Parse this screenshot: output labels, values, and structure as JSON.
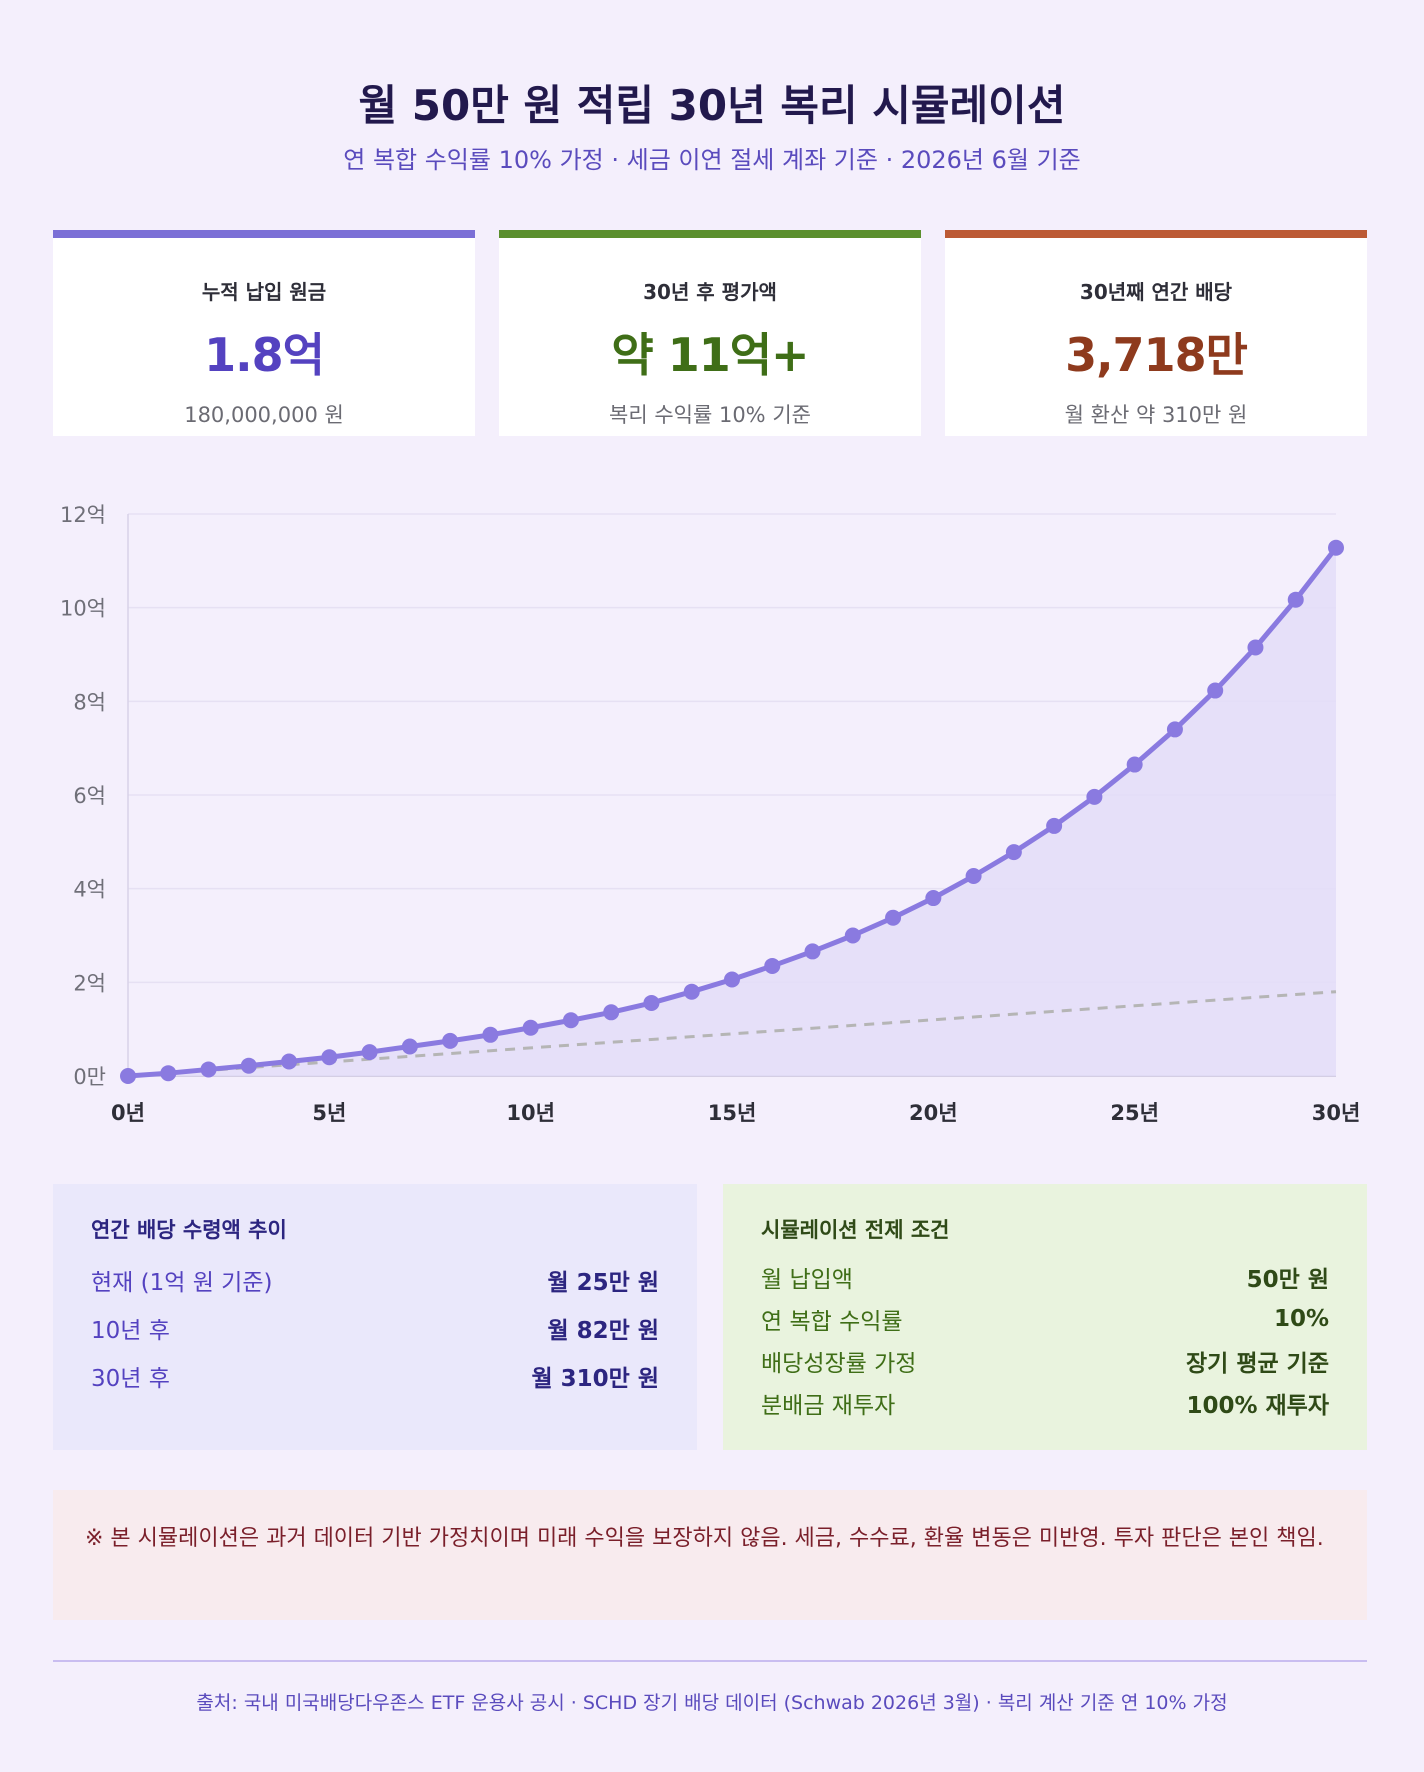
{
  "header": {
    "title": "월 50만 원 적립 30년 복리 시뮬레이션",
    "subtitle": "연 복합 수익률 10% 가정 · 세금 이연 절세 계좌 기준 · 2026년 6월 기준"
  },
  "cards": [
    {
      "label": "누적 납입 원금",
      "value": "1.8억",
      "note": "180,000,000 원",
      "accent": "#7b6fd6",
      "value_color": "#5442c0"
    },
    {
      "label": "30년 후 평가액",
      "value": "약 11억+",
      "note": "복리 수익률 10% 기준",
      "accent": "#5b8f2e",
      "value_color": "#3f6e17"
    },
    {
      "label": "30년째 연간 배당",
      "value": "3,718만",
      "note": "월 환산 약 310만 원",
      "accent": "#bc5a35",
      "value_color": "#8e3a1d"
    }
  ],
  "chart_data": {
    "type": "line",
    "x": [
      0,
      1,
      2,
      3,
      4,
      5,
      6,
      7,
      8,
      9,
      10,
      11,
      12,
      13,
      14,
      15,
      16,
      17,
      18,
      19,
      20,
      21,
      22,
      23,
      24,
      25,
      26,
      27,
      28,
      29,
      30
    ],
    "series": [
      {
        "values": [
          0,
          0.06,
          0.14,
          0.22,
          0.31,
          0.4,
          0.51,
          0.63,
          0.75,
          0.88,
          1.03,
          1.19,
          1.36,
          1.56,
          1.8,
          2.06,
          2.35,
          2.66,
          3.0,
          3.38,
          3.8,
          4.27,
          4.78,
          5.34,
          5.96,
          6.65,
          7.4,
          8.23,
          9.15,
          10.17,
          11.28
        ],
        "color": "#8a7ae0",
        "fill": "#e3ddf8"
      },
      {
        "values": [
          0,
          0.06,
          0.12,
          0.18,
          0.24,
          0.3,
          0.36,
          0.42,
          0.48,
          0.54,
          0.6,
          0.66,
          0.72,
          0.78,
          0.84,
          0.9,
          0.96,
          1.02,
          1.08,
          1.14,
          1.2,
          1.26,
          1.32,
          1.38,
          1.44,
          1.5,
          1.56,
          1.62,
          1.68,
          1.74,
          1.8
        ],
        "color": "#b5b5b5",
        "dashed": true
      }
    ],
    "ylim": [
      0,
      12
    ],
    "yticks": [
      0,
      2,
      4,
      6,
      8,
      10,
      12
    ],
    "ytick_labels": [
      "0만",
      "2억",
      "4억",
      "6억",
      "8억",
      "10억",
      "12억"
    ],
    "xticks": [
      0,
      5,
      10,
      15,
      20,
      25,
      30
    ],
    "xtick_labels": [
      "0년",
      "5년",
      "10년",
      "15년",
      "20년",
      "25년",
      "30년"
    ],
    "grid": true
  },
  "dividend_panel": {
    "title": "연간 배당 수령액 추이",
    "rows": [
      {
        "k": "현재 (1억 원 기준)",
        "v": "월 25만 원"
      },
      {
        "k": "10년 후",
        "v": "월 82만 원"
      },
      {
        "k": "30년 후",
        "v": "월 310만 원"
      }
    ]
  },
  "assumption_panel": {
    "title": "시뮬레이션 전제 조건",
    "rows": [
      {
        "k": "월 납입액",
        "v": "50만 원"
      },
      {
        "k": "연 복합 수익률",
        "v": "10%"
      },
      {
        "k": "배당성장률 가정",
        "v": "장기 평균 기준"
      },
      {
        "k": "분배금 재투자",
        "v": "100% 재투자"
      }
    ]
  },
  "disclaimer": "※ 본 시뮬레이션은 과거 데이터 기반 가정치이며 미래 수익을 보장하지 않음. 세금, 수수료, 환율 변동은 미반영. 투자 판단은 본인 책임.",
  "source": "출처: 국내 미국배당다우존스 ETF 운용사 공시 · SCHD 장기 배당 데이터 (Schwab 2026년 3월) · 복리 계산 기준 연 10% 가정"
}
